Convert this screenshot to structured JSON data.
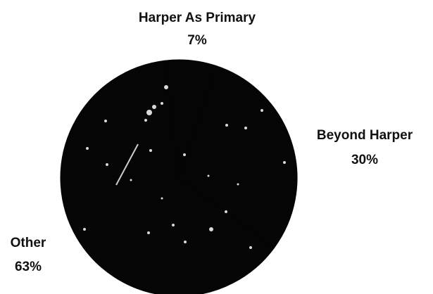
{
  "chart_data": {
    "type": "pie",
    "slices": [
      {
        "label": "Harper As Primary",
        "value": 7,
        "value_label": "7%"
      },
      {
        "label": "Beyond Harper",
        "value": 30,
        "value_label": "30%"
      },
      {
        "label": "Other",
        "value": 63,
        "value_label": "63%"
      }
    ],
    "colors": {
      "slice_fill": "#050505",
      "background": "#ffffff",
      "label_text": "#111111",
      "speckle": "#ffffff"
    },
    "legend": "none"
  }
}
